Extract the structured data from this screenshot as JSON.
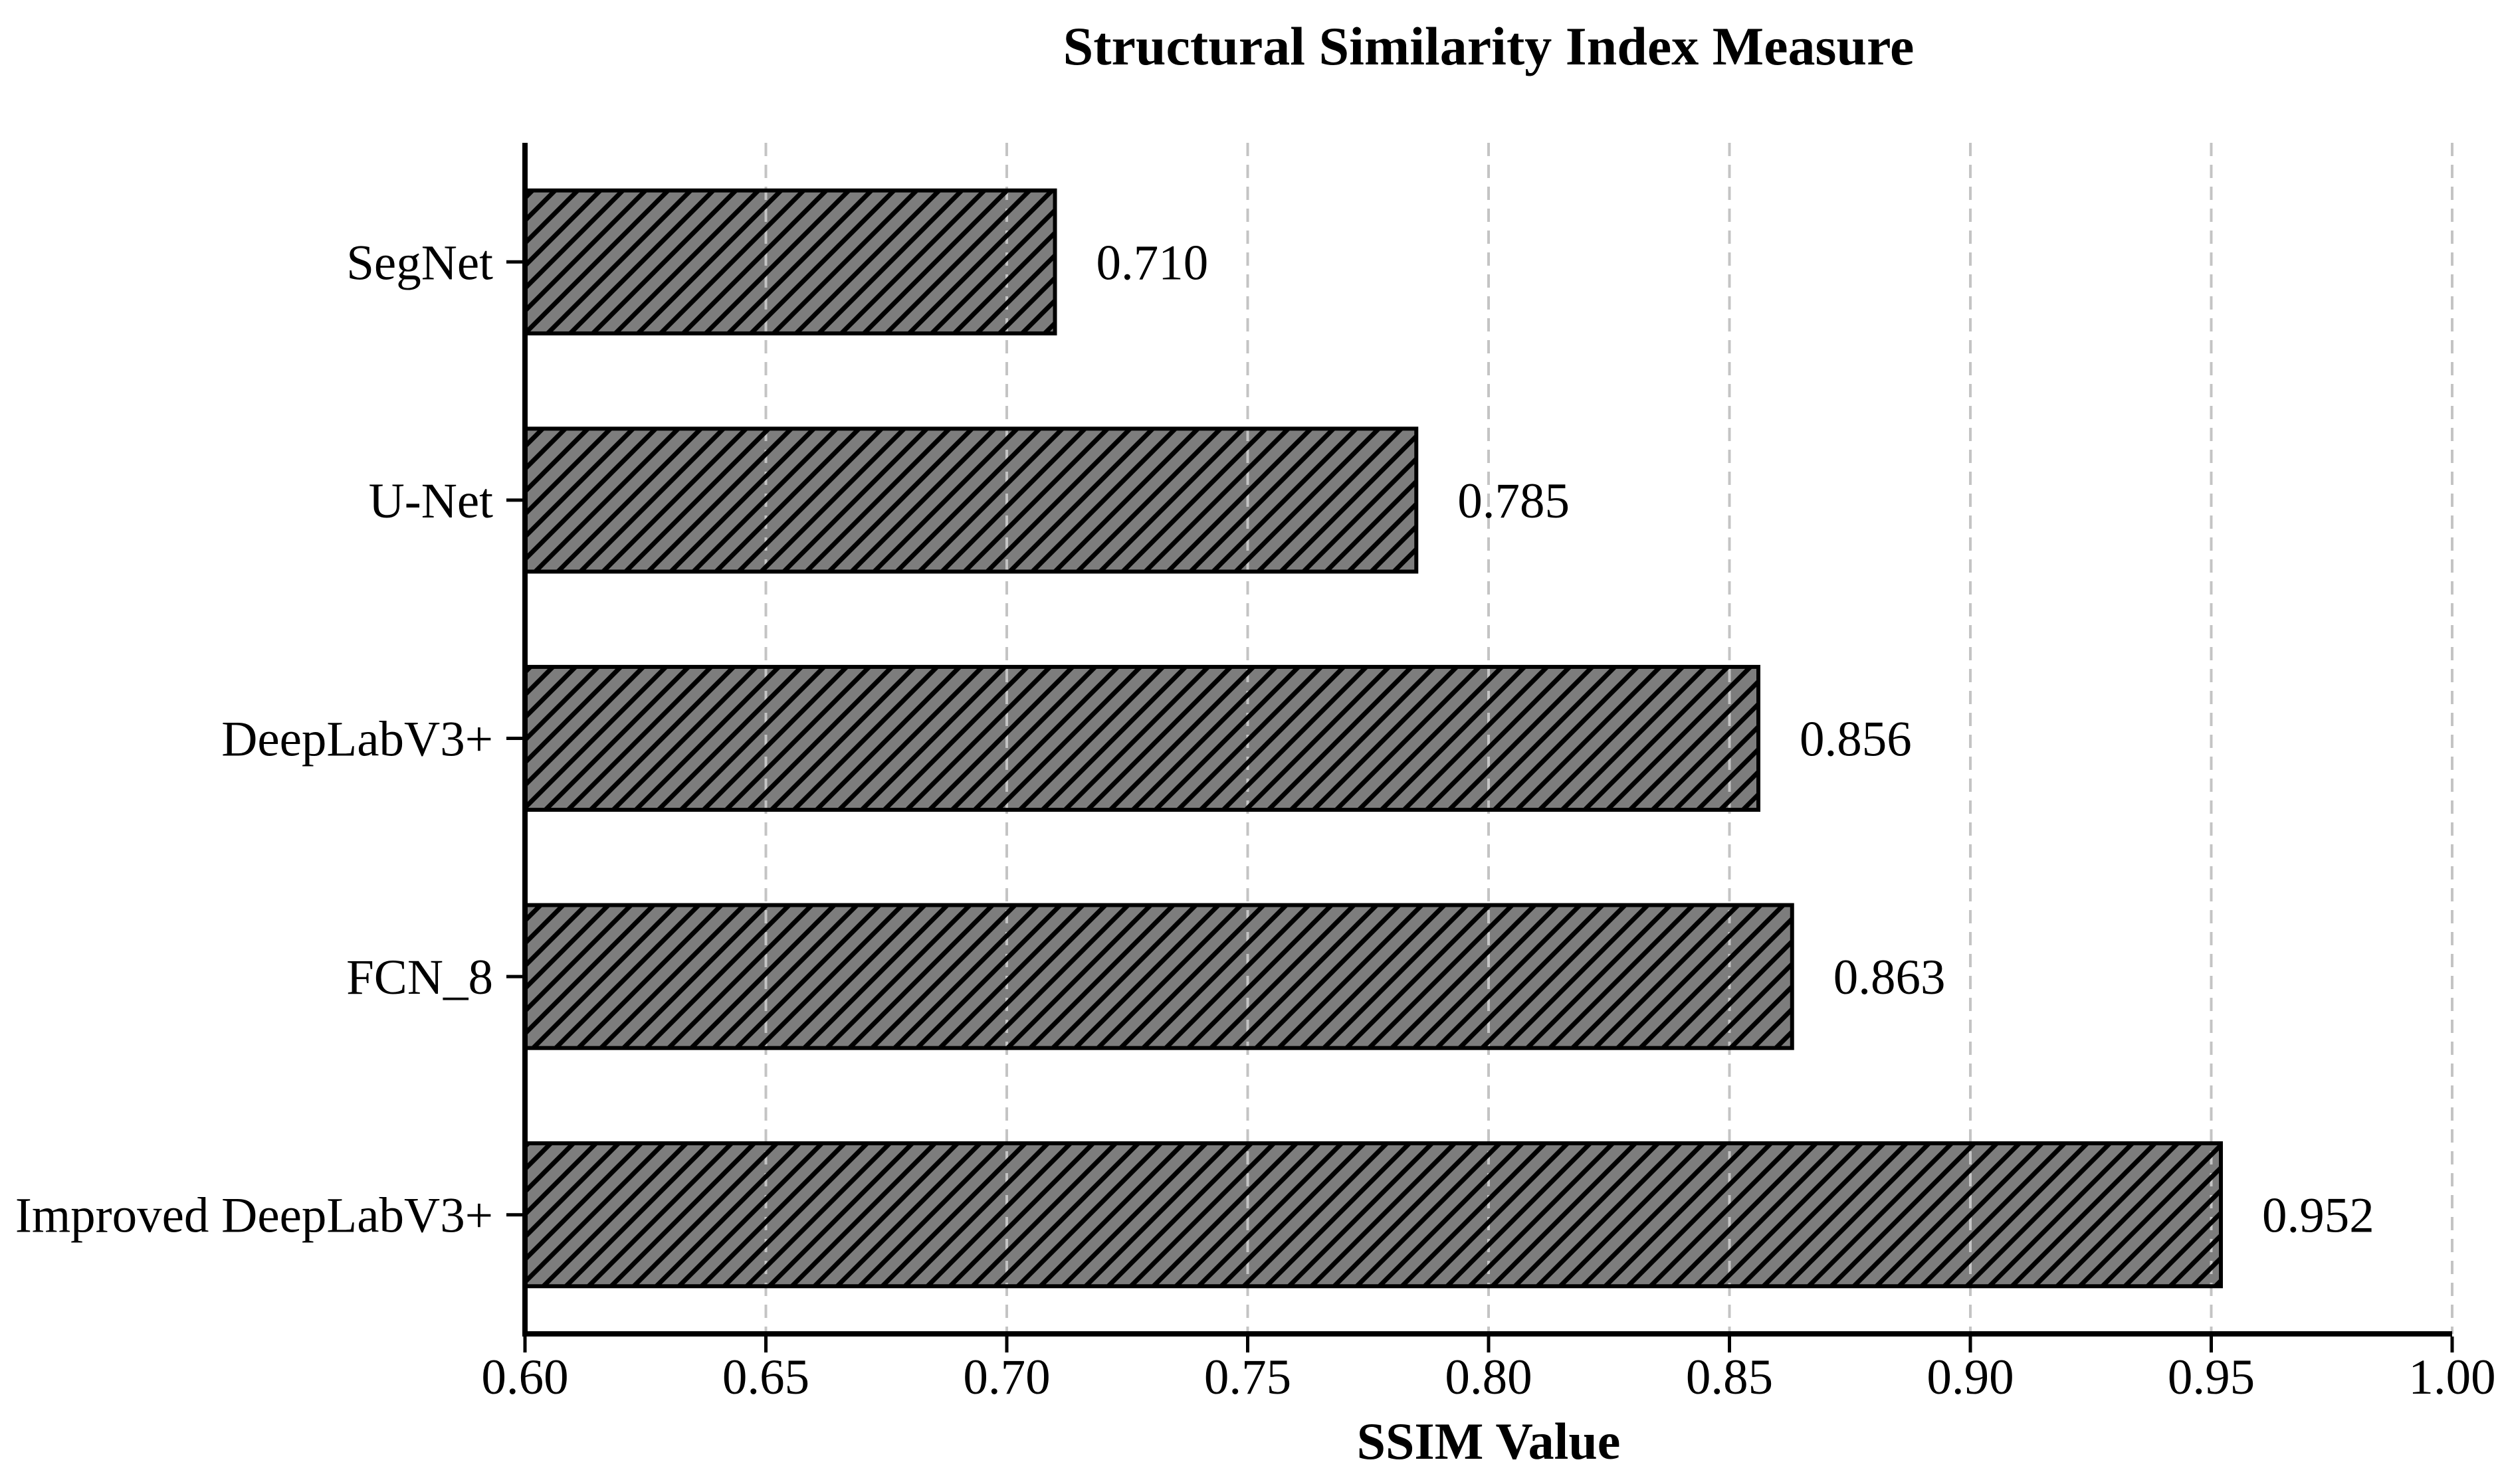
{
  "chart_data": {
    "type": "bar",
    "orientation": "horizontal",
    "title": "Structural Similarity Index Measure",
    "xlabel": "SSIM Value",
    "ylabel": "",
    "categories": [
      "SegNet",
      "U-Net",
      "DeepLabV3+",
      "FCN_8",
      "Improved DeepLabV3+"
    ],
    "values": [
      0.71,
      0.785,
      0.856,
      0.863,
      0.952
    ],
    "value_labels": [
      "0.710",
      "0.785",
      "0.856",
      "0.863",
      "0.952"
    ],
    "xlim": [
      0.6,
      1.0
    ],
    "xticks": [
      0.6,
      0.65,
      0.7,
      0.75,
      0.8,
      0.85,
      0.9,
      0.95,
      1.0
    ],
    "xtick_labels": [
      "0.60",
      "0.65",
      "0.70",
      "0.75",
      "0.80",
      "0.85",
      "0.90",
      "0.95",
      "1.00"
    ],
    "legend": "none",
    "grid": "vertical-dashed",
    "style": {
      "bar_fill": "#7d7d7d",
      "bar_edge": "#000000",
      "hatch": "/",
      "hatch_color": "#000000",
      "grid_color": "#c4c4c4",
      "axis_color": "#000000",
      "text_color": "#000000",
      "background": "#ffffff"
    }
  }
}
